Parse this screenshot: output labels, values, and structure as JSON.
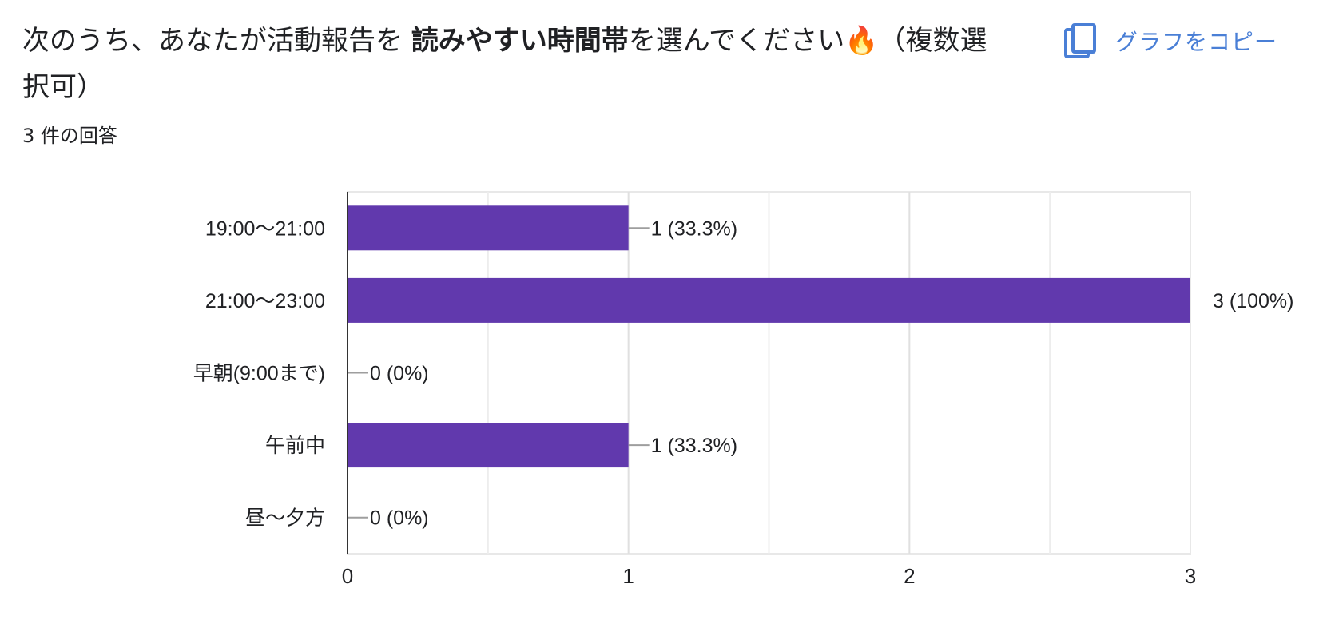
{
  "question": {
    "prefix": "次のうち、あなたが活動報告を ",
    "emphasis": "読みやすい時間帯",
    "suffix": "を選んでください🔥（複数選択可）"
  },
  "response_count": "3 件の回答",
  "copy_button": {
    "label": "グラフをコピー",
    "icon": "copy-icon"
  },
  "colors": {
    "bar": "#6139ad",
    "link": "#4a7fd6"
  },
  "chart_data": {
    "type": "bar",
    "orientation": "horizontal",
    "categories": [
      "19:00〜21:00",
      "21:00〜23:00",
      "早朝(9:00まで)",
      "午前中",
      "昼〜夕方"
    ],
    "values": [
      1,
      3,
      0,
      1,
      0
    ],
    "data_labels": [
      "1 (33.3%)",
      "3 (100%)",
      "0 (0%)",
      "1 (33.3%)",
      "0 (0%)"
    ],
    "xlim": [
      0,
      3
    ],
    "xticks": [
      "0",
      "1",
      "2",
      "3"
    ],
    "grid": true
  }
}
